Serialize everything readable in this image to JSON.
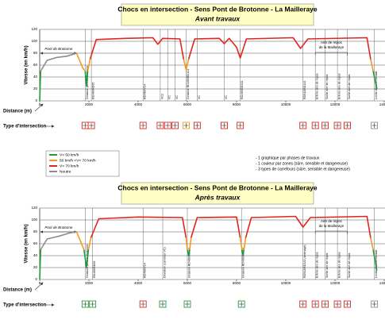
{
  "chart_data": [
    {
      "type": "line",
      "title": "Chocs en intersection - Sens Pont de Brotonne - La Mailleraye",
      "subtitle": "Avant travaux",
      "xlabel": "Distance (m)",
      "ylabel": "Vitesse (en km/h)",
      "intersection_label": "Type d'intersection",
      "bridge_label": "Pont de Brotonne",
      "rest_area_label": [
        "Aire de repos",
        "de la Mailleraye"
      ],
      "xlim": [
        0,
        14000
      ],
      "xticks": [
        0,
        2000,
        4000,
        6000,
        8000,
        10000,
        12000,
        14000
      ],
      "ylim": [
        0,
        120
      ],
      "yticks": [
        0,
        20,
        40,
        60,
        80,
        100,
        120
      ],
      "grid": true,
      "x": [
        0,
        40,
        300,
        700,
        1100,
        1500,
        1750,
        1850,
        1900,
        1950,
        2050,
        2300,
        3500,
        4600,
        4800,
        5000,
        5700,
        5850,
        5950,
        6050,
        6300,
        7300,
        7500,
        7700,
        8000,
        8150,
        8400,
        10300,
        10600,
        10900,
        13300,
        13450,
        13550,
        13700
      ],
      "series": [
        {
          "name": "V< 50 km/h",
          "color": "#1f9a3c",
          "values": [
            0,
            50,
            null,
            null,
            null,
            null,
            null,
            50,
            25,
            50,
            null,
            null,
            null,
            null,
            null,
            null,
            null,
            null,
            null,
            null,
            null,
            null,
            null,
            null,
            null,
            null,
            null,
            null,
            null,
            null,
            null,
            null,
            50,
            20
          ]
        },
        {
          "name": "50 km/h <V< 70 km/h",
          "color": "#f39a1e",
          "values": [
            null,
            null,
            null,
            null,
            null,
            80,
            55,
            50,
            null,
            50,
            70,
            null,
            null,
            null,
            null,
            null,
            null,
            70,
            52,
            70,
            null,
            null,
            null,
            null,
            null,
            null,
            null,
            null,
            null,
            null,
            null,
            70,
            50,
            null
          ]
        },
        {
          "name": "V> 70 km/h",
          "color": "#e0261f",
          "values": [
            null,
            null,
            null,
            null,
            null,
            null,
            null,
            null,
            null,
            null,
            70,
            103,
            105,
            106,
            95,
            105,
            104,
            70,
            null,
            70,
            104,
            105,
            96,
            105,
            90,
            72,
            104,
            106,
            88,
            104,
            106,
            70,
            null,
            null
          ]
        },
        {
          "name": "Neutre",
          "color": "#8c8c8c",
          "values": [
            null,
            50,
            68,
            73,
            75,
            80,
            null,
            null,
            null,
            null,
            null,
            null,
            null,
            null,
            null,
            null,
            null,
            null,
            null,
            null,
            null,
            null,
            null,
            null,
            null,
            null,
            null,
            null,
            null,
            null,
            null,
            null,
            null,
            null
          ]
        }
      ],
      "annotations": [
        {
          "x": 1850,
          "label": "Giratoire pont de Brotonne",
          "icon_color": "#e0261f"
        },
        {
          "x": 2100,
          "label": "RD490/RD65",
          "icon_color": "#e0261f"
        },
        {
          "x": 4200,
          "label": "RD490/VC4",
          "icon_color": "#e0261f"
        },
        {
          "x": 4900,
          "label": "VC2",
          "icon_color": "#e0261f"
        },
        {
          "x": 5200,
          "label": "VC",
          "icon_color": "#e0261f"
        },
        {
          "x": 5500,
          "label": "VC",
          "icon_color": "#e0261f"
        },
        {
          "x": 5950,
          "label": "Giratoire RD490/RD131",
          "icon_color": "#f39a1e"
        },
        {
          "x": 6400,
          "label": "VC",
          "icon_color": "#e0261f"
        },
        {
          "x": 7500,
          "label": "VC",
          "icon_color": "#e0261f"
        },
        {
          "x": 8150,
          "label": "RD490/RD313",
          "icon_color": "#e0261f"
        },
        {
          "x": 10700,
          "label": "RD913/RD143",
          "icon_color": "#e0261f"
        },
        {
          "x": 11200,
          "label": "Entrée aire de repos",
          "icon_color": "#e0261f"
        },
        {
          "x": 11600,
          "label": "Sortie aire de repos",
          "icon_color": "#e0261f"
        },
        {
          "x": 12100,
          "label": "Entrée aire de repos",
          "icon_color": "#e0261f"
        },
        {
          "x": 12500,
          "label": "Sortie aire de repos",
          "icon_color": "#e0261f"
        },
        {
          "x": 13600,
          "label": "Limite départementale",
          "icon_color": "#8c8c8c"
        }
      ]
    },
    {
      "type": "line",
      "title": "Chocs en intersection - Sens Pont de Brotonne - La Mailleraye",
      "subtitle": "Après travaux",
      "xlabel": "Distance (m)",
      "ylabel": "Vitesse (en km/h)",
      "intersection_label": "Type d'intersection",
      "bridge_label": "Pont de Brotonne",
      "rest_area_label": [
        "Aire de repos",
        "de la Mailleraye"
      ],
      "xlim": [
        0,
        14000
      ],
      "xticks": [
        0,
        2000,
        4000,
        6000,
        8000,
        10000,
        12000,
        14000
      ],
      "ylim": [
        0,
        120
      ],
      "yticks": [
        0,
        20,
        40,
        60,
        80,
        100,
        120
      ],
      "grid": true,
      "x": [
        0,
        40,
        300,
        800,
        1200,
        1500,
        1750,
        1800,
        1900,
        1980,
        2080,
        2400,
        4000,
        5800,
        5950,
        6000,
        6050,
        6100,
        6150,
        6400,
        8000,
        8150,
        8220,
        8260,
        8300,
        8370,
        8600,
        10400,
        10700,
        11000,
        13300,
        13450,
        13550,
        13700
      ],
      "series": [
        {
          "name": "V< 50 km/h",
          "color": "#1f9a3c",
          "values": [
            0,
            50,
            null,
            null,
            null,
            null,
            null,
            50,
            20,
            50,
            null,
            null,
            null,
            null,
            null,
            50,
            40,
            50,
            null,
            null,
            null,
            null,
            50,
            42,
            50,
            null,
            null,
            null,
            null,
            null,
            null,
            null,
            50,
            15
          ]
        },
        {
          "name": "50 km/h <V< 70 km/h",
          "color": "#f39a1e",
          "values": [
            null,
            null,
            null,
            null,
            null,
            80,
            55,
            50,
            null,
            50,
            70,
            null,
            null,
            null,
            70,
            50,
            null,
            50,
            70,
            null,
            null,
            70,
            50,
            null,
            50,
            70,
            null,
            null,
            null,
            null,
            null,
            70,
            50,
            null
          ]
        },
        {
          "name": "V> 70 km/h",
          "color": "#e0261f",
          "values": [
            null,
            null,
            null,
            null,
            null,
            null,
            null,
            null,
            null,
            null,
            70,
            102,
            105,
            104,
            70,
            null,
            null,
            null,
            70,
            104,
            105,
            70,
            null,
            null,
            null,
            70,
            104,
            106,
            88,
            104,
            106,
            70,
            null,
            null
          ]
        },
        {
          "name": "Neutre",
          "color": "#8c8c8c",
          "values": [
            null,
            50,
            68,
            73,
            78,
            80,
            null,
            null,
            null,
            null,
            null,
            null,
            null,
            null,
            null,
            null,
            null,
            null,
            null,
            null,
            null,
            null,
            null,
            null,
            null,
            null,
            null,
            null,
            null,
            null,
            null,
            null,
            null,
            null
          ]
        }
      ],
      "annotations": [
        {
          "x": 1850,
          "label": "Giratoire pont de Brotonne",
          "icon_color": "#1f9a3c"
        },
        {
          "x": 2150,
          "label": "RD490/RD65",
          "icon_color": "#1f9a3c"
        },
        {
          "x": 4200,
          "label": "RD490/VC4",
          "icon_color": "#e0261f"
        },
        {
          "x": 5000,
          "label": "Déviation (carrefour VC)",
          "icon_color": "#1f9a3c"
        },
        {
          "x": 6000,
          "label": "Giratoire RD490/RD131",
          "icon_color": "#1f9a3c"
        },
        {
          "x": 8200,
          "label": "Giratoire RD490/RD313",
          "icon_color": "#1f9a3c"
        },
        {
          "x": 10700,
          "label": "RD913/RD143 (aménagé)",
          "icon_color": "#e0261f"
        },
        {
          "x": 11200,
          "label": "Entrée aire de repos",
          "icon_color": "#e0261f"
        },
        {
          "x": 11600,
          "label": "Sortie aire de repos",
          "icon_color": "#e0261f"
        },
        {
          "x": 12100,
          "label": "Entrée aire de repos",
          "icon_color": "#e0261f"
        },
        {
          "x": 12500,
          "label": "Sortie aire de repos",
          "icon_color": "#e0261f"
        },
        {
          "x": 13600,
          "label": "Limite départementale",
          "icon_color": "#8c8c8c"
        }
      ]
    }
  ],
  "notes": [
    "- 1 graphique par phases de travaux",
    "- 1 couleur par zones (sûre, sensible et dangereuse)",
    "- 3 types de carrefours (sûre, sensible et dangereuse)"
  ]
}
